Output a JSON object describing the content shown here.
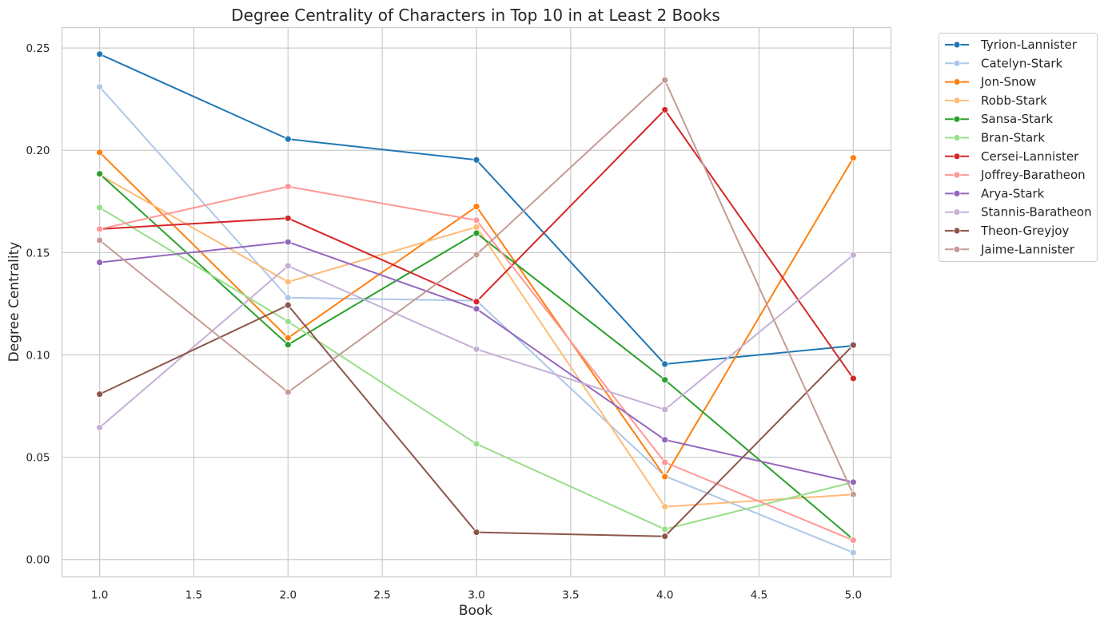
{
  "chart_data": {
    "type": "line",
    "title": "Degree Centrality of Characters in Top 10 in at Least 2 Books",
    "xlabel": "Book",
    "ylabel": "Degree Centrality",
    "x": [
      1,
      2,
      3,
      4,
      5
    ],
    "xlim": [
      0.8,
      5.2
    ],
    "ylim": [
      -0.0085,
      0.26
    ],
    "xticks": [
      "1.0",
      "1.5",
      "2.0",
      "2.5",
      "3.0",
      "3.5",
      "4.0",
      "4.5",
      "5.0"
    ],
    "yticks": [
      "0.00",
      "0.05",
      "0.10",
      "0.15",
      "0.20",
      "0.25"
    ],
    "grid": true,
    "legend_position": "outside-top-right",
    "series": [
      {
        "name": "Tyrion-Lannister",
        "color": "#1f77b4",
        "values": [
          0.247,
          0.2055,
          0.1953,
          0.0955,
          0.1045
        ]
      },
      {
        "name": "Catelyn-Stark",
        "color": "#aec7e8",
        "values": [
          0.231,
          0.128,
          0.1265,
          0.0408,
          0.0034
        ]
      },
      {
        "name": "Jon-Snow",
        "color": "#ff7f0e",
        "values": [
          0.199,
          0.1083,
          0.1725,
          0.0405,
          0.1963
        ]
      },
      {
        "name": "Robb-Stark",
        "color": "#ffbb78",
        "values": [
          0.188,
          0.1357,
          0.1625,
          0.0258,
          0.0318
        ]
      },
      {
        "name": "Sansa-Stark",
        "color": "#2ca02c",
        "values": [
          0.1885,
          0.105,
          0.1595,
          0.0878,
          0.0098
        ]
      },
      {
        "name": "Bran-Stark",
        "color": "#98df8a",
        "values": [
          0.172,
          0.1163,
          0.0565,
          0.0148,
          0.0378
        ]
      },
      {
        "name": "Cersei-Lannister",
        "color": "#d62728",
        "values": [
          0.1615,
          0.1668,
          0.126,
          0.2198,
          0.0885
        ]
      },
      {
        "name": "Joffrey-Baratheon",
        "color": "#ff9896",
        "values": [
          0.1615,
          0.1823,
          0.1658,
          0.0475,
          0.0094
        ]
      },
      {
        "name": "Arya-Stark",
        "color": "#9467bd",
        "values": [
          0.1452,
          0.1552,
          0.1225,
          0.0585,
          0.0378
        ]
      },
      {
        "name": "Stannis-Baratheon",
        "color": "#c5b0d5",
        "values": [
          0.0645,
          0.1435,
          0.1028,
          0.0733,
          0.1488
        ]
      },
      {
        "name": "Theon-Greyjoy",
        "color": "#8c564b",
        "values": [
          0.0808,
          0.1243,
          0.0133,
          0.0113,
          0.1048
        ]
      },
      {
        "name": "Jaime-Lannister",
        "color": "#c49c94",
        "values": [
          0.156,
          0.0818,
          0.149,
          0.2343,
          0.0318
        ]
      }
    ]
  }
}
